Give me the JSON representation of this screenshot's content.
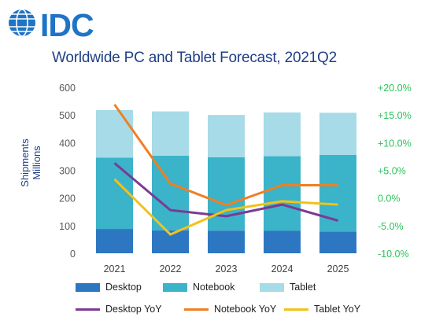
{
  "logo": {
    "text": "IDC",
    "color": "#1f74c6"
  },
  "chart_data": {
    "type": "bar",
    "title": "Worldwide PC and Tablet Forecast, 2021Q2",
    "ylabel": [
      "Shipments",
      "Millions"
    ],
    "categories": [
      "2021",
      "2022",
      "2023",
      "2024",
      "2025"
    ],
    "ylim": [
      0,
      600
    ],
    "yticks": [
      "0",
      "100",
      "200",
      "300",
      "400",
      "500",
      "600"
    ],
    "y2lim": [
      -10,
      20
    ],
    "y2ticks": [
      "-10.0%",
      "-5.0%",
      "0.0%",
      "+5.0%",
      "+10.0%",
      "+15.0%",
      "+20.0%"
    ],
    "stacked_series": [
      {
        "name": "Desktop",
        "color": "#2d77c2",
        "values": [
          88,
          83,
          82,
          81,
          78
        ]
      },
      {
        "name": "Notebook",
        "color": "#3bb3c9",
        "values": [
          258,
          270,
          265,
          270,
          278
        ]
      },
      {
        "name": "Tablet",
        "color": "#a6dbe7",
        "values": [
          172,
          160,
          153,
          158,
          152
        ]
      }
    ],
    "line_series": [
      {
        "name": "Desktop YoY",
        "color": "#7c3a93",
        "values": [
          6.3,
          -2.2,
          -3.3,
          -1.2,
          -4.1
        ]
      },
      {
        "name": "Notebook YoY",
        "color": "#f07f22",
        "values": [
          16.9,
          2.6,
          -1.3,
          2.3,
          2.3
        ]
      },
      {
        "name": "Tablet YoY",
        "color": "#f2c218",
        "values": [
          3.4,
          -6.6,
          -2.2,
          -0.6,
          -1.2
        ]
      }
    ],
    "grid": false,
    "legend": "bottom",
    "left_tick_color": "#595959",
    "right_tick_color": "#2dc45a"
  }
}
